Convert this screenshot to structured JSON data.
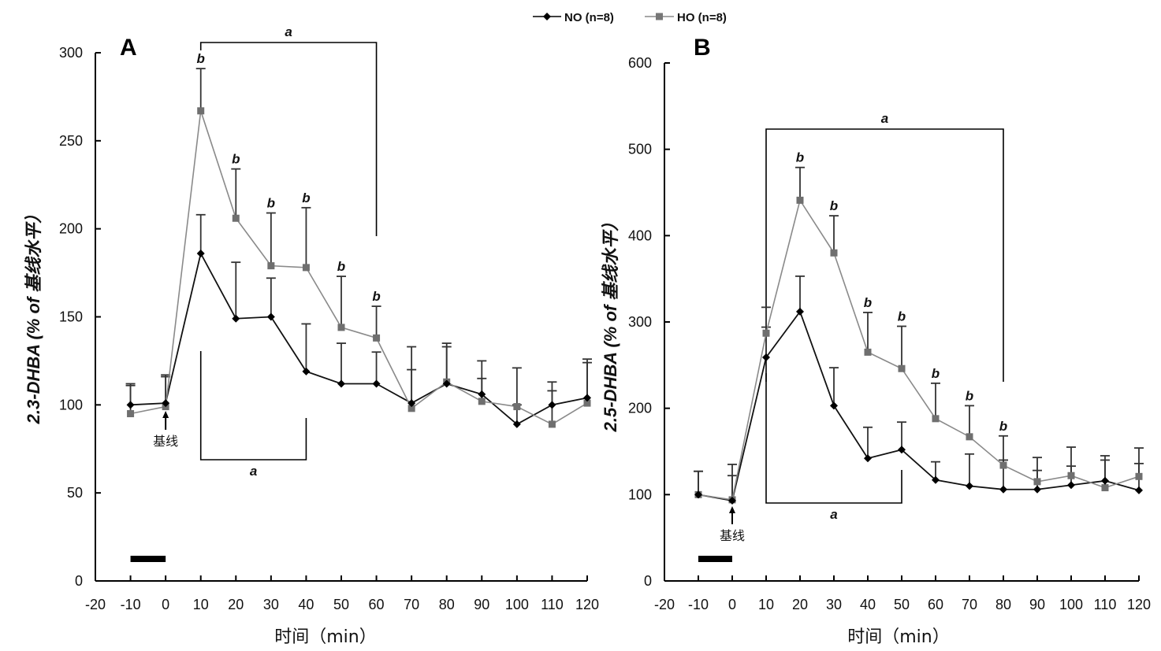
{
  "legend": {
    "items": [
      {
        "label": "NO (n=8)",
        "color": "#000000",
        "marker": "diamond"
      },
      {
        "label": "HO (n=8)",
        "color": "#777777",
        "marker": "square"
      }
    ]
  },
  "chart_data": [
    {
      "type": "line",
      "panel": "A",
      "title": "",
      "xlabel": "时间（min）",
      "ylabel": "2.3-DHBA (% of 基线水平）",
      "xlim": [
        -20,
        120
      ],
      "ylim": [
        0,
        300
      ],
      "xticks": [
        "-20",
        "-10",
        "0",
        "10",
        "20",
        "30",
        "40",
        "50",
        "60",
        "70",
        "80",
        "90",
        "100",
        "110",
        "120"
      ],
      "yticks": [
        "0",
        "50",
        "100",
        "150",
        "200",
        "250",
        "300"
      ],
      "x": [
        -10,
        0,
        10,
        20,
        30,
        40,
        50,
        60,
        70,
        80,
        90,
        100,
        110,
        120
      ],
      "series": [
        {
          "name": "NO (n=8)",
          "color": "#000000",
          "marker": "diamond",
          "values": [
            100,
            101,
            186,
            149,
            150,
            119,
            112,
            112,
            101,
            112,
            106,
            89,
            100,
            104
          ],
          "error_upper": [
            111,
            117,
            208,
            181,
            172,
            146,
            135,
            130,
            120,
            135,
            115,
            100,
            108,
            124
          ]
        },
        {
          "name": "HO (n=8)",
          "color": "#777777",
          "marker": "square",
          "values": [
            95,
            99,
            267,
            206,
            179,
            178,
            144,
            138,
            98,
            113,
            102,
            99,
            89,
            101
          ],
          "error_upper": [
            112,
            116,
            291,
            234,
            209,
            212,
            173,
            156,
            133,
            133,
            125,
            121,
            113,
            126
          ]
        }
      ],
      "significance_b_at": [
        10,
        20,
        30,
        40,
        50,
        60
      ],
      "annotations": {
        "sig_label_b": "b",
        "bracket_top": {
          "label": "a",
          "from": 10,
          "to": 60
        },
        "bracket_bottom": {
          "label": "a",
          "from": 10,
          "to": 40
        },
        "baseline_label": "基线",
        "baseline_at": 0,
        "stimulus_bar": {
          "from": -10,
          "to": 0
        }
      }
    },
    {
      "type": "line",
      "panel": "B",
      "title": "",
      "xlabel": "时间（min）",
      "ylabel": "2.5-DHBA (% of 基线水平）",
      "xlim": [
        -20,
        120
      ],
      "ylim": [
        0,
        600
      ],
      "xticks": [
        "-20",
        "-10",
        "0",
        "10",
        "20",
        "30",
        "40",
        "50",
        "60",
        "70",
        "80",
        "90",
        "100",
        "110",
        "120"
      ],
      "yticks": [
        "0",
        "100",
        "200",
        "300",
        "400",
        "500",
        "600"
      ],
      "x": [
        -10,
        0,
        10,
        20,
        30,
        40,
        50,
        60,
        70,
        80,
        90,
        100,
        110,
        120
      ],
      "series": [
        {
          "name": "NO (n=8)",
          "color": "#000000",
          "marker": "diamond",
          "values": [
            100,
            93,
            259,
            312,
            203,
            142,
            152,
            117,
            110,
            106,
            106,
            111,
            116,
            105
          ],
          "error_upper": [
            127,
            122,
            294,
            353,
            247,
            178,
            184,
            138,
            147,
            140,
            128,
            133,
            140,
            136
          ]
        },
        {
          "name": "HO (n=8)",
          "color": "#777777",
          "marker": "square",
          "values": [
            100,
            94,
            287,
            441,
            380,
            265,
            246,
            188,
            167,
            134,
            115,
            122,
            108,
            121
          ],
          "error_upper": [
            127,
            135,
            317,
            479,
            423,
            311,
            295,
            229,
            203,
            168,
            143,
            155,
            145,
            154
          ]
        }
      ],
      "significance_b_at": [
        20,
        30,
        40,
        50,
        60,
        70,
        80
      ],
      "annotations": {
        "sig_label_b": "b",
        "bracket_top": {
          "label": "a",
          "from": 10,
          "to": 80
        },
        "bracket_bottom": {
          "label": "a",
          "from": 10,
          "to": 50
        },
        "baseline_label": "基线",
        "baseline_at": 0,
        "stimulus_bar": {
          "from": -10,
          "to": 0
        }
      }
    }
  ]
}
